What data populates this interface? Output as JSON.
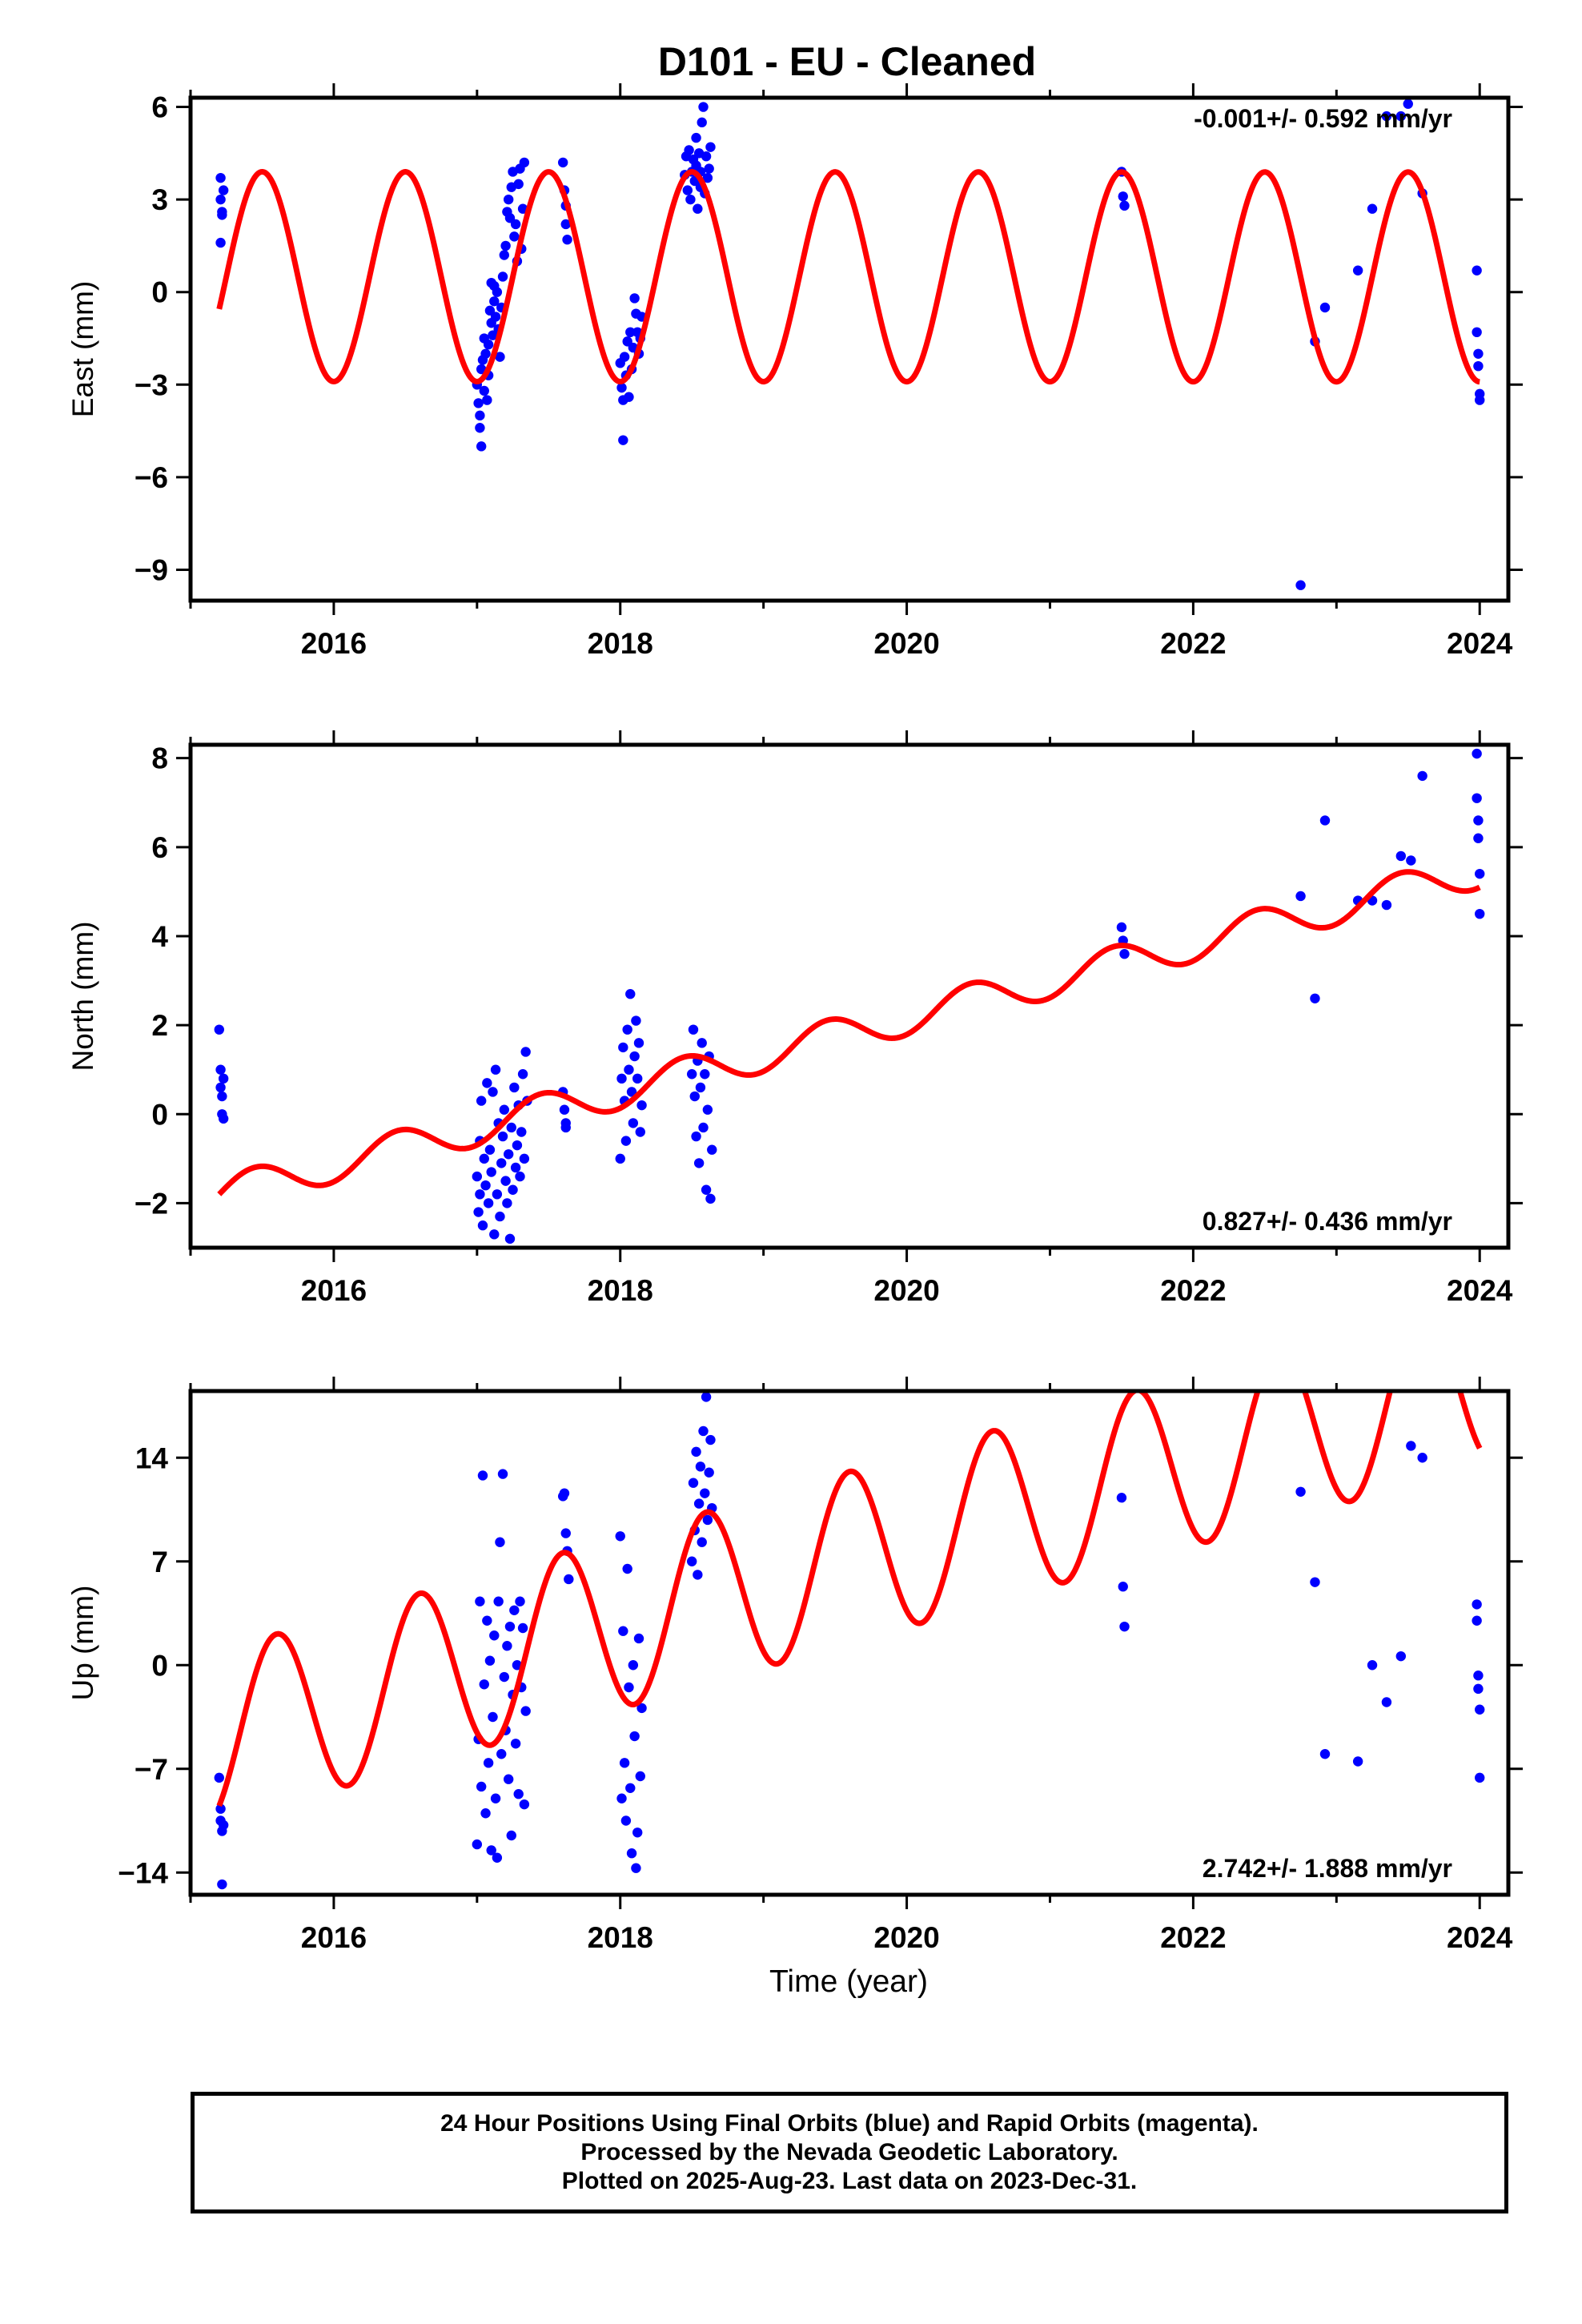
{
  "title": "D101  - EU - Cleaned",
  "xlabel": "Time (year)",
  "footer": {
    "line1": "24 Hour Positions Using Final Orbits (blue) and Rapid Orbits (magenta).",
    "line2": "Processed by the Nevada Geodetic Laboratory.",
    "line3": "Plotted on 2025-Aug-23. Last data on 2023-Dec-31."
  },
  "colors": {
    "data": "#0000ff",
    "model": "#ff0000",
    "axis": "#000000"
  },
  "chart_data": [
    {
      "type": "scatter",
      "name": "east",
      "ylabel": "East (mm)",
      "rate_text": "-0.001+/- 0.592 mm/yr",
      "rate_position": "top-right",
      "xlim": [
        2015.0,
        2024.2
      ],
      "ylim": [
        -10.0,
        6.3
      ],
      "xticks": [
        2016,
        2018,
        2020,
        2022,
        2024
      ],
      "xtick_labels": [
        "2016",
        "2018",
        "2020",
        "2022",
        "2024"
      ],
      "yticks": [
        -9,
        -6,
        -3,
        0,
        3,
        6
      ],
      "ytick_labels": [
        "−9",
        "−6",
        "−3",
        "0",
        "3",
        "6"
      ],
      "grid": false,
      "model": {
        "type": "trend+annual",
        "offset": 0.5,
        "rate": -0.001,
        "t0": 2015.2,
        "amplitude": 3.4,
        "peak_phase": 0.5,
        "curve_color": "#ff0000"
      },
      "points": [
        [
          2015.21,
          3.7
        ],
        [
          2015.21,
          3.0
        ],
        [
          2015.22,
          2.6
        ],
        [
          2015.22,
          2.5
        ],
        [
          2015.21,
          1.6
        ],
        [
          2015.23,
          3.3
        ],
        [
          2017.0,
          -3.0
        ],
        [
          2017.01,
          -3.6
        ],
        [
          2017.02,
          -4.0
        ],
        [
          2017.02,
          -4.4
        ],
        [
          2017.03,
          -5.0
        ],
        [
          2017.03,
          -2.5
        ],
        [
          2017.04,
          -2.2
        ],
        [
          2017.05,
          -3.2
        ],
        [
          2017.05,
          -1.5
        ],
        [
          2017.06,
          -2.0
        ],
        [
          2017.07,
          -3.5
        ],
        [
          2017.08,
          -2.7
        ],
        [
          2017.08,
          -1.7
        ],
        [
          2017.09,
          -0.6
        ],
        [
          2017.1,
          -1.0
        ],
        [
          2017.1,
          0.3
        ],
        [
          2017.11,
          -1.4
        ],
        [
          2017.12,
          -0.3
        ],
        [
          2017.12,
          0.2
        ],
        [
          2017.13,
          -0.8
        ],
        [
          2017.14,
          0.0
        ],
        [
          2017.15,
          -1.2
        ],
        [
          2017.16,
          -2.1
        ],
        [
          2017.17,
          -0.5
        ],
        [
          2017.18,
          0.5
        ],
        [
          2017.19,
          1.2
        ],
        [
          2017.2,
          1.5
        ],
        [
          2017.21,
          2.6
        ],
        [
          2017.22,
          3.0
        ],
        [
          2017.23,
          2.4
        ],
        [
          2017.24,
          3.4
        ],
        [
          2017.25,
          3.9
        ],
        [
          2017.26,
          1.8
        ],
        [
          2017.27,
          2.2
        ],
        [
          2017.28,
          1.0
        ],
        [
          2017.29,
          3.5
        ],
        [
          2017.3,
          4.0
        ],
        [
          2017.31,
          1.4
        ],
        [
          2017.32,
          2.7
        ],
        [
          2017.33,
          4.2
        ],
        [
          2017.6,
          4.2
        ],
        [
          2017.61,
          3.3
        ],
        [
          2017.62,
          2.8
        ],
        [
          2017.62,
          2.2
        ],
        [
          2017.63,
          1.7
        ],
        [
          2018.0,
          -2.3
        ],
        [
          2018.01,
          -3.1
        ],
        [
          2018.02,
          -4.8
        ],
        [
          2018.02,
          -3.5
        ],
        [
          2018.03,
          -2.1
        ],
        [
          2018.04,
          -2.7
        ],
        [
          2018.05,
          -1.6
        ],
        [
          2018.06,
          -3.4
        ],
        [
          2018.07,
          -1.3
        ],
        [
          2018.08,
          -2.5
        ],
        [
          2018.09,
          -1.8
        ],
        [
          2018.1,
          -0.2
        ],
        [
          2018.11,
          -0.7
        ],
        [
          2018.12,
          -1.3
        ],
        [
          2018.13,
          -2.0
        ],
        [
          2018.14,
          -1.5
        ],
        [
          2018.15,
          -0.8
        ],
        [
          2018.45,
          3.8
        ],
        [
          2018.46,
          4.4
        ],
        [
          2018.47,
          3.3
        ],
        [
          2018.48,
          4.6
        ],
        [
          2018.49,
          3.0
        ],
        [
          2018.5,
          3.9
        ],
        [
          2018.51,
          4.3
        ],
        [
          2018.52,
          3.6
        ],
        [
          2018.53,
          4.1
        ],
        [
          2018.53,
          5.0
        ],
        [
          2018.54,
          2.7
        ],
        [
          2018.55,
          4.5
        ],
        [
          2018.56,
          3.4
        ],
        [
          2018.56,
          3.9
        ],
        [
          2018.57,
          5.5
        ],
        [
          2018.58,
          6.0
        ],
        [
          2018.59,
          3.2
        ],
        [
          2018.6,
          4.4
        ],
        [
          2018.61,
          3.7
        ],
        [
          2018.62,
          4.0
        ],
        [
          2018.63,
          4.7
        ],
        [
          2021.5,
          3.9
        ],
        [
          2021.51,
          3.1
        ],
        [
          2021.52,
          2.8
        ],
        [
          2022.75,
          -9.5
        ],
        [
          2022.85,
          -1.6
        ],
        [
          2022.92,
          -0.5
        ],
        [
          2023.15,
          0.7
        ],
        [
          2023.25,
          2.7
        ],
        [
          2023.35,
          5.7
        ],
        [
          2023.45,
          5.7
        ],
        [
          2023.5,
          6.1
        ],
        [
          2023.6,
          3.2
        ],
        [
          2023.98,
          0.7
        ],
        [
          2023.98,
          -1.3
        ],
        [
          2023.99,
          -2.0
        ],
        [
          2023.99,
          -2.4
        ],
        [
          2024.0,
          -3.3
        ],
        [
          2024.0,
          -3.5
        ]
      ]
    },
    {
      "type": "scatter",
      "name": "north",
      "ylabel": "North (mm)",
      "rate_text": "0.827+/- 0.436 mm/yr",
      "rate_position": "bottom-right",
      "xlim": [
        2015.0,
        2024.2
      ],
      "ylim": [
        -3.0,
        8.3
      ],
      "xticks": [
        2016,
        2018,
        2020,
        2022,
        2024
      ],
      "xtick_labels": [
        "2016",
        "2018",
        "2020",
        "2022",
        "2024"
      ],
      "yticks": [
        -2,
        0,
        2,
        4,
        6,
        8
      ],
      "ytick_labels": [
        "−2",
        "0",
        "2",
        "4",
        "6",
        "8"
      ],
      "grid": false,
      "model": {
        "type": "trend+annual",
        "offset": -1.8,
        "rate": 0.827,
        "t0": 2015.2,
        "amplitude": 0.4,
        "peak_phase": 0.45,
        "curve_color": "#ff0000"
      },
      "points": [
        [
          2015.2,
          1.9
        ],
        [
          2015.21,
          1.0
        ],
        [
          2015.21,
          0.6
        ],
        [
          2015.22,
          0.4
        ],
        [
          2015.22,
          0.0
        ],
        [
          2015.23,
          -0.1
        ],
        [
          2015.23,
          0.8
        ],
        [
          2017.0,
          -1.4
        ],
        [
          2017.01,
          -2.2
        ],
        [
          2017.02,
          -0.6
        ],
        [
          2017.02,
          -1.8
        ],
        [
          2017.03,
          0.3
        ],
        [
          2017.04,
          -2.5
        ],
        [
          2017.05,
          -1.0
        ],
        [
          2017.06,
          -1.6
        ],
        [
          2017.07,
          0.7
        ],
        [
          2017.08,
          -2.0
        ],
        [
          2017.09,
          -0.8
        ],
        [
          2017.1,
          -1.3
        ],
        [
          2017.11,
          0.5
        ],
        [
          2017.12,
          -2.7
        ],
        [
          2017.13,
          1.0
        ],
        [
          2017.14,
          -1.8
        ],
        [
          2017.15,
          -0.2
        ],
        [
          2017.16,
          -2.3
        ],
        [
          2017.17,
          -1.1
        ],
        [
          2017.18,
          -0.5
        ],
        [
          2017.19,
          0.1
        ],
        [
          2017.2,
          -1.5
        ],
        [
          2017.21,
          -2.0
        ],
        [
          2017.22,
          -0.9
        ],
        [
          2017.23,
          -2.8
        ],
        [
          2017.24,
          -0.3
        ],
        [
          2017.25,
          -1.7
        ],
        [
          2017.26,
          0.6
        ],
        [
          2017.27,
          -1.2
        ],
        [
          2017.28,
          -0.7
        ],
        [
          2017.29,
          0.2
        ],
        [
          2017.3,
          -1.4
        ],
        [
          2017.31,
          -0.4
        ],
        [
          2017.32,
          0.9
        ],
        [
          2017.33,
          -1.0
        ],
        [
          2017.34,
          1.4
        ],
        [
          2017.35,
          0.3
        ],
        [
          2017.6,
          0.5
        ],
        [
          2017.61,
          0.1
        ],
        [
          2017.62,
          -0.2
        ],
        [
          2017.62,
          -0.3
        ],
        [
          2018.0,
          -1.0
        ],
        [
          2018.01,
          0.8
        ],
        [
          2018.02,
          1.5
        ],
        [
          2018.03,
          0.3
        ],
        [
          2018.04,
          -0.6
        ],
        [
          2018.05,
          1.9
        ],
        [
          2018.06,
          1.0
        ],
        [
          2018.07,
          2.7
        ],
        [
          2018.08,
          0.5
        ],
        [
          2018.09,
          -0.2
        ],
        [
          2018.1,
          1.3
        ],
        [
          2018.11,
          2.1
        ],
        [
          2018.12,
          0.8
        ],
        [
          2018.13,
          1.6
        ],
        [
          2018.14,
          -0.4
        ],
        [
          2018.15,
          0.2
        ],
        [
          2018.5,
          0.9
        ],
        [
          2018.51,
          1.9
        ],
        [
          2018.52,
          0.4
        ],
        [
          2018.53,
          -0.5
        ],
        [
          2018.54,
          1.2
        ],
        [
          2018.55,
          -1.1
        ],
        [
          2018.56,
          0.6
        ],
        [
          2018.57,
          1.6
        ],
        [
          2018.58,
          -0.3
        ],
        [
          2018.59,
          0.9
        ],
        [
          2018.6,
          -1.7
        ],
        [
          2018.61,
          0.1
        ],
        [
          2018.62,
          1.3
        ],
        [
          2018.63,
          -1.9
        ],
        [
          2018.64,
          -0.8
        ],
        [
          2021.5,
          4.2
        ],
        [
          2021.51,
          3.9
        ],
        [
          2021.52,
          3.6
        ],
        [
          2022.75,
          4.9
        ],
        [
          2022.85,
          2.6
        ],
        [
          2022.92,
          6.6
        ],
        [
          2023.15,
          4.8
        ],
        [
          2023.25,
          4.8
        ],
        [
          2023.35,
          4.7
        ],
        [
          2023.45,
          5.8
        ],
        [
          2023.52,
          5.7
        ],
        [
          2023.6,
          7.6
        ],
        [
          2023.98,
          8.1
        ],
        [
          2023.98,
          7.1
        ],
        [
          2023.99,
          6.6
        ],
        [
          2023.99,
          6.2
        ],
        [
          2024.0,
          5.4
        ],
        [
          2024.0,
          4.5
        ]
      ]
    },
    {
      "type": "scatter",
      "name": "up",
      "ylabel": "Up (mm)",
      "rate_text": "2.742+/- 1.888 mm/yr",
      "rate_position": "bottom-right",
      "xlim": [
        2015.0,
        2024.2
      ],
      "ylim": [
        -15.5,
        18.5
      ],
      "xticks": [
        2016,
        2018,
        2020,
        2022,
        2024
      ],
      "xtick_labels": [
        "2016",
        "2018",
        "2020",
        "2022",
        "2024"
      ],
      "yticks": [
        -14,
        -7,
        0,
        7,
        14
      ],
      "ytick_labels": [
        "−14",
        "−7",
        "0",
        "7",
        "14"
      ],
      "grid": false,
      "model": {
        "type": "trend+annual",
        "offset": -4.8,
        "rate": 2.742,
        "t0": 2015.2,
        "amplitude": 5.8,
        "peak_phase": 0.6,
        "curve_color": "#ff0000"
      },
      "points": [
        [
          2015.2,
          -7.6
        ],
        [
          2015.21,
          -9.7
        ],
        [
          2015.21,
          -10.5
        ],
        [
          2015.22,
          -11.2
        ],
        [
          2015.22,
          -14.8
        ],
        [
          2015.23,
          -10.8
        ],
        [
          2017.0,
          -12.1
        ],
        [
          2017.01,
          -5.0
        ],
        [
          2017.02,
          4.3
        ],
        [
          2017.03,
          -8.2
        ],
        [
          2017.04,
          12.8
        ],
        [
          2017.05,
          -1.3
        ],
        [
          2017.06,
          -10.0
        ],
        [
          2017.07,
          3.0
        ],
        [
          2017.08,
          -6.6
        ],
        [
          2017.09,
          0.3
        ],
        [
          2017.1,
          -12.5
        ],
        [
          2017.11,
          -3.5
        ],
        [
          2017.12,
          2.0
        ],
        [
          2017.13,
          -9.0
        ],
        [
          2017.14,
          -13.0
        ],
        [
          2017.15,
          4.3
        ],
        [
          2017.16,
          8.3
        ],
        [
          2017.17,
          -6.0
        ],
        [
          2017.18,
          12.9
        ],
        [
          2017.19,
          -0.8
        ],
        [
          2017.2,
          -4.4
        ],
        [
          2017.21,
          1.3
        ],
        [
          2017.22,
          -7.7
        ],
        [
          2017.23,
          2.6
        ],
        [
          2017.24,
          -11.5
        ],
        [
          2017.25,
          -2.0
        ],
        [
          2017.26,
          3.7
        ],
        [
          2017.27,
          -5.3
        ],
        [
          2017.28,
          0.0
        ],
        [
          2017.29,
          -8.7
        ],
        [
          2017.3,
          4.3
        ],
        [
          2017.31,
          -1.5
        ],
        [
          2017.32,
          2.5
        ],
        [
          2017.33,
          -9.4
        ],
        [
          2017.34,
          -3.1
        ],
        [
          2017.6,
          11.4
        ],
        [
          2017.61,
          11.6
        ],
        [
          2017.62,
          8.9
        ],
        [
          2017.63,
          7.7
        ],
        [
          2017.64,
          5.8
        ],
        [
          2018.0,
          8.7
        ],
        [
          2018.01,
          -9.0
        ],
        [
          2018.02,
          2.3
        ],
        [
          2018.03,
          -6.6
        ],
        [
          2018.04,
          -10.5
        ],
        [
          2018.05,
          6.5
        ],
        [
          2018.06,
          -1.5
        ],
        [
          2018.07,
          -8.3
        ],
        [
          2018.08,
          -12.7
        ],
        [
          2018.09,
          0.0
        ],
        [
          2018.1,
          -4.8
        ],
        [
          2018.11,
          -13.7
        ],
        [
          2018.12,
          -11.3
        ],
        [
          2018.13,
          1.8
        ],
        [
          2018.14,
          -7.5
        ],
        [
          2018.15,
          -2.9
        ],
        [
          2018.5,
          7.0
        ],
        [
          2018.51,
          12.3
        ],
        [
          2018.52,
          9.1
        ],
        [
          2018.53,
          14.4
        ],
        [
          2018.54,
          6.1
        ],
        [
          2018.55,
          10.9
        ],
        [
          2018.56,
          13.4
        ],
        [
          2018.57,
          8.3
        ],
        [
          2018.58,
          15.8
        ],
        [
          2018.59,
          11.6
        ],
        [
          2018.6,
          18.1
        ],
        [
          2018.61,
          9.8
        ],
        [
          2018.62,
          13.0
        ],
        [
          2018.63,
          15.2
        ],
        [
          2018.64,
          10.6
        ],
        [
          2021.5,
          11.3
        ],
        [
          2021.51,
          5.3
        ],
        [
          2021.52,
          2.6
        ],
        [
          2022.75,
          11.7
        ],
        [
          2022.85,
          5.6
        ],
        [
          2022.92,
          -6.0
        ],
        [
          2023.15,
          -6.5
        ],
        [
          2023.25,
          0.0
        ],
        [
          2023.35,
          -2.5
        ],
        [
          2023.45,
          0.6
        ],
        [
          2023.52,
          14.8
        ],
        [
          2023.6,
          14.0
        ],
        [
          2023.98,
          4.1
        ],
        [
          2023.98,
          3.0
        ],
        [
          2023.99,
          -0.7
        ],
        [
          2023.99,
          -1.6
        ],
        [
          2024.0,
          -3.0
        ],
        [
          2024.0,
          -7.6
        ]
      ]
    }
  ]
}
